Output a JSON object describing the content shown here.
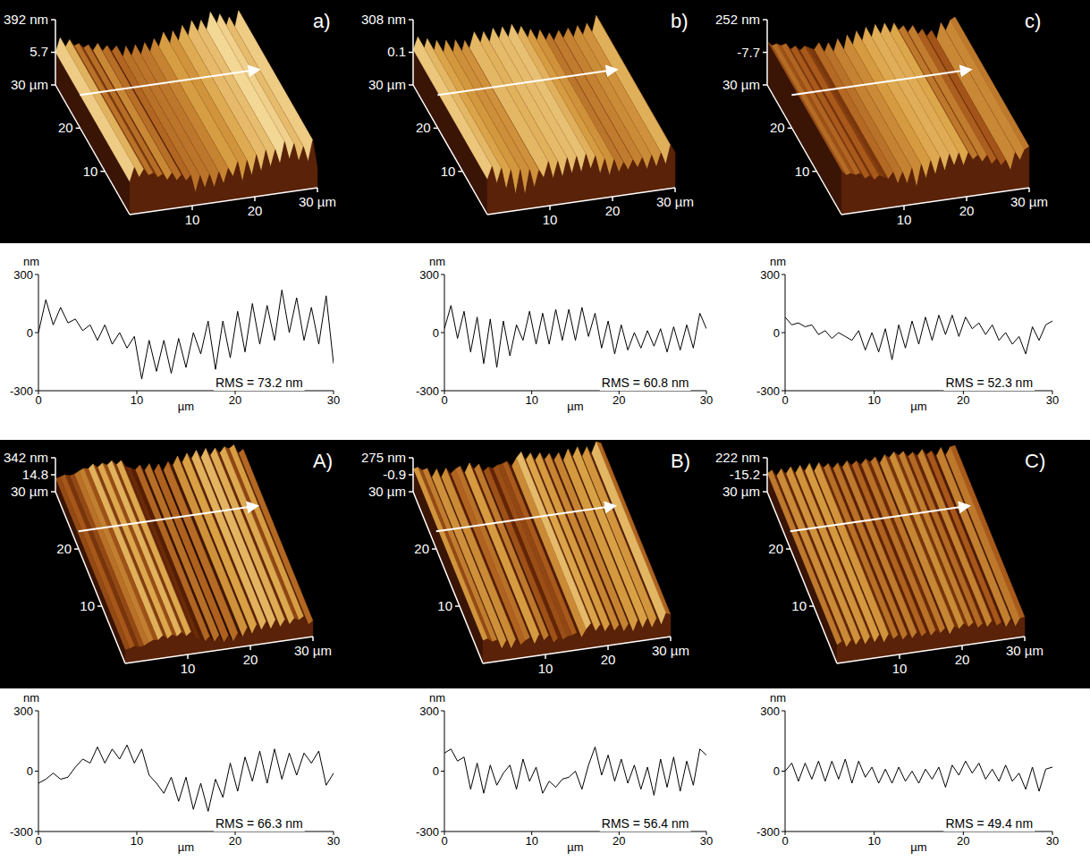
{
  "chart_data": [
    {
      "type": "line",
      "label": "a)",
      "xlabel": "µm",
      "ylabel": "nm",
      "annotation": "RMS = 73.2 nm",
      "color": "#000000",
      "x": [
        0,
        0.75,
        1.5,
        2.25,
        3,
        3.75,
        4.5,
        5.25,
        6,
        6.75,
        7.5,
        8.25,
        9,
        9.75,
        10.5,
        11.25,
        12,
        12.75,
        13.5,
        14.25,
        15,
        15.75,
        16.5,
        17.25,
        18,
        18.75,
        19.5,
        20.25,
        21,
        21.75,
        22.5,
        23.25,
        24,
        24.75,
        25.5,
        26.25,
        27,
        27.75,
        28.5,
        29.25,
        30
      ],
      "values": [
        0,
        170,
        40,
        130,
        50,
        70,
        10,
        40,
        -40,
        40,
        -60,
        0,
        -80,
        -20,
        -240,
        -40,
        -200,
        -40,
        -210,
        -30,
        -180,
        0,
        -110,
        60,
        -190,
        60,
        -130,
        110,
        -100,
        150,
        -60,
        140,
        -40,
        220,
        0,
        180,
        -40,
        130,
        -60,
        190,
        -160
      ],
      "xlim": [
        0,
        30
      ],
      "ylim": [
        -300,
        300
      ],
      "xticks": [
        0,
        10,
        20,
        30
      ],
      "yticks": [
        -300,
        0,
        300
      ],
      "surface": {
        "zlim": [
          -381,
          392
        ],
        "zticks": [
          {
            "value": 392,
            "label": "392 nm"
          },
          5.7
        ],
        "xlim": [
          0,
          30
        ],
        "xticks": [
          10,
          20,
          {
            "value": 30,
            "label": "30 µm"
          }
        ],
        "ylim": [
          0,
          30
        ],
        "yticks": [
          10,
          20,
          {
            "value": 30,
            "label": "30 µm"
          }
        ]
      }
    },
    {
      "type": "line",
      "label": "b)",
      "xlabel": "µm",
      "ylabel": "nm",
      "annotation": "RMS = 60.8 nm",
      "color": "#000000",
      "x": [
        0,
        0.75,
        1.5,
        2.25,
        3,
        3.75,
        4.5,
        5.25,
        6,
        6.75,
        7.5,
        8.25,
        9,
        9.75,
        10.5,
        11.25,
        12,
        12.75,
        13.5,
        14.25,
        15,
        15.75,
        16.5,
        17.25,
        18,
        18.75,
        19.5,
        20.25,
        21,
        21.75,
        22.5,
        23.25,
        24,
        24.75,
        25.5,
        26.25,
        27,
        27.75,
        28.5,
        29.25,
        30
      ],
      "values": [
        20,
        140,
        -30,
        110,
        -100,
        80,
        -160,
        70,
        -180,
        60,
        -120,
        40,
        -40,
        110,
        -60,
        100,
        -60,
        120,
        -40,
        120,
        -40,
        130,
        -20,
        100,
        -80,
        60,
        -110,
        40,
        -90,
        0,
        -80,
        10,
        -70,
        20,
        -100,
        30,
        -90,
        40,
        -80,
        100,
        20
      ],
      "xlim": [
        0,
        30
      ],
      "ylim": [
        -300,
        300
      ],
      "xticks": [
        0,
        10,
        20,
        30
      ],
      "yticks": [
        -300,
        0,
        300
      ],
      "surface": {
        "zlim": [
          -308,
          308
        ],
        "zticks": [
          {
            "value": 308,
            "label": "308 nm"
          },
          0.1
        ],
        "xlim": [
          0,
          30
        ],
        "xticks": [
          10,
          20,
          {
            "value": 30,
            "label": "30 µm"
          }
        ],
        "ylim": [
          0,
          30
        ],
        "yticks": [
          10,
          20,
          {
            "value": 30,
            "label": "30 µm"
          }
        ]
      }
    },
    {
      "type": "line",
      "label": "c)",
      "xlabel": "µm",
      "ylabel": "nm",
      "annotation": "RMS = 52.3 nm",
      "color": "#000000",
      "x": [
        0,
        0.75,
        1.5,
        2.25,
        3,
        3.75,
        4.5,
        5.25,
        6,
        6.75,
        7.5,
        8.25,
        9,
        9.75,
        10.5,
        11.25,
        12,
        12.75,
        13.5,
        14.25,
        15,
        15.75,
        16.5,
        17.25,
        18,
        18.75,
        19.5,
        20.25,
        21,
        21.75,
        22.5,
        23.25,
        24,
        24.75,
        25.5,
        26.25,
        27,
        27.75,
        28.5,
        29.25,
        30
      ],
      "values": [
        80,
        40,
        50,
        30,
        40,
        -10,
        10,
        -30,
        0,
        -20,
        -40,
        10,
        -90,
        0,
        -100,
        20,
        -140,
        40,
        -80,
        60,
        -60,
        80,
        -40,
        90,
        -10,
        90,
        -20,
        80,
        20,
        50,
        -10,
        40,
        -40,
        0,
        -60,
        -20,
        -110,
        30,
        -40,
        40,
        60
      ],
      "xlim": [
        0,
        30
      ],
      "ylim": [
        -300,
        300
      ],
      "xticks": [
        0,
        10,
        20,
        30
      ],
      "yticks": [
        -300,
        0,
        300
      ],
      "surface": {
        "zlim": [
          -267,
          252
        ],
        "zticks": [
          {
            "value": 252,
            "label": "252 nm"
          },
          -7.7
        ],
        "xlim": [
          0,
          30
        ],
        "xticks": [
          10,
          20,
          {
            "value": 30,
            "label": "30 µm"
          }
        ],
        "ylim": [
          0,
          30
        ],
        "yticks": [
          10,
          20,
          {
            "value": 30,
            "label": "30 µm"
          }
        ]
      }
    },
    {
      "type": "line",
      "label": "A)",
      "xlabel": "µm",
      "ylabel": "nm",
      "annotation": "RMS = 66.3 nm",
      "color": "#000000",
      "x": [
        0,
        0.75,
        1.5,
        2.25,
        3,
        3.75,
        4.5,
        5.25,
        6,
        6.75,
        7.5,
        8.25,
        9,
        9.75,
        10.5,
        11.25,
        12,
        12.75,
        13.5,
        14.25,
        15,
        15.75,
        16.5,
        17.25,
        18,
        18.75,
        19.5,
        20.25,
        21,
        21.75,
        22.5,
        23.25,
        24,
        24.75,
        25.5,
        26.25,
        27,
        27.75,
        28.5,
        29.25,
        30
      ],
      "values": [
        -60,
        -40,
        -10,
        -40,
        -30,
        20,
        60,
        40,
        120,
        40,
        110,
        60,
        130,
        40,
        110,
        -20,
        -60,
        -110,
        -30,
        -150,
        -30,
        -190,
        -60,
        -200,
        -40,
        -130,
        40,
        -100,
        70,
        -50,
        100,
        -60,
        110,
        -40,
        90,
        -20,
        90,
        40,
        100,
        -70,
        -10
      ],
      "xlim": [
        0,
        30
      ],
      "ylim": [
        -300,
        300
      ],
      "xticks": [
        0,
        10,
        20,
        30
      ],
      "yticks": [
        -300,
        0,
        300
      ],
      "surface": {
        "zlim": [
          -312,
          342
        ],
        "zticks": [
          {
            "value": 342,
            "label": "342 nm"
          },
          14.8
        ],
        "xlim": [
          0,
          30
        ],
        "xticks": [
          10,
          20,
          {
            "value": 30,
            "label": "30 µm"
          }
        ],
        "ylim": [
          0,
          30
        ],
        "yticks": [
          10,
          20,
          {
            "value": 30,
            "label": "30 µm"
          }
        ]
      }
    },
    {
      "type": "line",
      "label": "B)",
      "xlabel": "µm",
      "ylabel": "nm",
      "annotation": "RMS = 56.4 nm",
      "color": "#000000",
      "x": [
        0,
        0.75,
        1.5,
        2.25,
        3,
        3.75,
        4.5,
        5.25,
        6,
        6.75,
        7.5,
        8.25,
        9,
        9.75,
        10.5,
        11.25,
        12,
        12.75,
        13.5,
        14.25,
        15,
        15.75,
        16.5,
        17.25,
        18,
        18.75,
        19.5,
        20.25,
        21,
        21.75,
        22.5,
        23.25,
        24,
        24.75,
        25.5,
        26.25,
        27,
        27.75,
        28.5,
        29.25,
        30
      ],
      "values": [
        90,
        110,
        50,
        70,
        -90,
        40,
        -110,
        30,
        -70,
        -10,
        30,
        -90,
        60,
        -50,
        20,
        -110,
        -50,
        -80,
        -40,
        -30,
        0,
        -90,
        30,
        120,
        -20,
        80,
        -50,
        60,
        -60,
        30,
        -90,
        20,
        -120,
        60,
        -80,
        70,
        -100,
        50,
        -70,
        110,
        80
      ],
      "xlim": [
        0,
        30
      ],
      "ylim": [
        -300,
        300
      ],
      "xticks": [
        0,
        10,
        20,
        30
      ],
      "yticks": [
        -300,
        0,
        300
      ],
      "surface": {
        "zlim": [
          -277,
          275
        ],
        "zticks": [
          {
            "value": 275,
            "label": "275 nm"
          },
          -0.9
        ],
        "xlim": [
          0,
          30
        ],
        "xticks": [
          10,
          20,
          {
            "value": 30,
            "label": "30 µm"
          }
        ],
        "ylim": [
          0,
          30
        ],
        "yticks": [
          10,
          20,
          {
            "value": 30,
            "label": "30 µm"
          }
        ]
      }
    },
    {
      "type": "line",
      "label": "C)",
      "xlabel": "µm",
      "ylabel": "nm",
      "annotation": "RMS = 49.4 nm",
      "color": "#000000",
      "x": [
        0,
        0.75,
        1.5,
        2.25,
        3,
        3.75,
        4.5,
        5.25,
        6,
        6.75,
        7.5,
        8.25,
        9,
        9.75,
        10.5,
        11.25,
        12,
        12.75,
        13.5,
        14.25,
        15,
        15.75,
        16.5,
        17.25,
        18,
        18.75,
        19.5,
        20.25,
        21,
        21.75,
        22.5,
        23.25,
        24,
        24.75,
        25.5,
        26.25,
        27,
        27.75,
        28.5,
        29.25,
        30
      ],
      "values": [
        0,
        40,
        -50,
        40,
        -40,
        50,
        -50,
        50,
        -40,
        60,
        -60,
        50,
        -30,
        20,
        -60,
        10,
        -60,
        20,
        -50,
        0,
        -60,
        10,
        -40,
        20,
        -80,
        30,
        -20,
        50,
        -10,
        40,
        -40,
        10,
        -50,
        30,
        -50,
        -10,
        -90,
        20,
        -100,
        10,
        20
      ],
      "xlim": [
        0,
        30
      ],
      "ylim": [
        -300,
        300
      ],
      "xticks": [
        0,
        10,
        20,
        30
      ],
      "yticks": [
        -300,
        0,
        300
      ],
      "surface": {
        "zlim": [
          -252,
          222
        ],
        "zticks": [
          {
            "value": 222,
            "label": "222 nm"
          },
          -15.2
        ],
        "xlim": [
          0,
          30
        ],
        "xticks": [
          10,
          20,
          {
            "value": 30,
            "label": "30 µm"
          }
        ],
        "ylim": [
          0,
          30
        ],
        "yticks": [
          10,
          20,
          {
            "value": 30,
            "label": "30 µm"
          }
        ]
      }
    }
  ]
}
